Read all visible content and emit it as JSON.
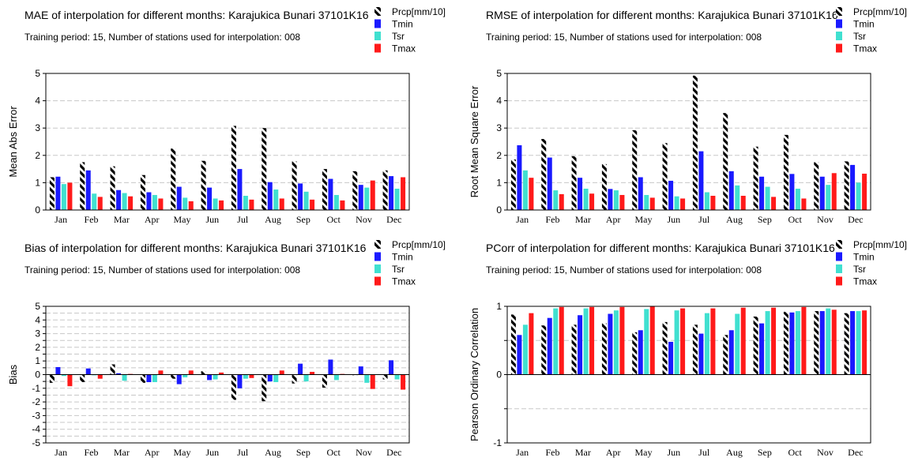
{
  "colors": {
    "Prcp[mm/10]": "hatch-black-white",
    "Tmin": "#1a1aff",
    "Tsr": "#40e0d0",
    "Tmax": "#ff1a1a",
    "gridline": "#c8c8c8"
  },
  "chart_data": [
    {
      "type": "bar",
      "title": "MAE of interpolation for different months: Karajukica Bunari  37101K16",
      "subtitle": "Training period: 15, Number of stations used for interpolation: 008",
      "ylabel": "Mean Abs Error",
      "xlabel": "",
      "ylim": [
        0,
        5
      ],
      "yticks": [
        0,
        1,
        2,
        3,
        4,
        5
      ],
      "ytick_labels": [
        "0",
        "1",
        "2",
        "3",
        "4",
        "5"
      ],
      "grid": true,
      "legend_position": "top-right",
      "categories": [
        "Jan",
        "Feb",
        "Mar",
        "Apr",
        "May",
        "Jun",
        "Jul",
        "Aug",
        "Sep",
        "Oct",
        "Nov",
        "Dec"
      ],
      "series": [
        {
          "name": "Prcp[mm/10]",
          "values": [
            1.2,
            1.75,
            1.6,
            1.28,
            2.25,
            1.8,
            3.08,
            3.0,
            1.78,
            1.5,
            1.42,
            1.45
          ]
        },
        {
          "name": "Tmin",
          "values": [
            1.22,
            1.45,
            0.73,
            0.65,
            0.85,
            0.82,
            1.5,
            1.02,
            0.97,
            1.14,
            0.92,
            1.24
          ]
        },
        {
          "name": "Tsr",
          "values": [
            0.95,
            0.6,
            0.62,
            0.55,
            0.45,
            0.42,
            0.52,
            0.75,
            0.67,
            0.55,
            0.82,
            0.78
          ]
        },
        {
          "name": "Tmax",
          "values": [
            1.0,
            0.48,
            0.5,
            0.42,
            0.32,
            0.35,
            0.38,
            0.42,
            0.38,
            0.35,
            1.08,
            1.2
          ]
        }
      ]
    },
    {
      "type": "bar",
      "title": "RMSE of interpolation for different months: Karajukica Bunari  37101K16",
      "subtitle": "Training period: 15, Number of stations used for interpolation: 008",
      "ylabel": "Root Mean Square Error",
      "xlabel": "",
      "ylim": [
        0,
        5
      ],
      "yticks": [
        0,
        1,
        2,
        3,
        4,
        5
      ],
      "ytick_labels": [
        "0",
        "1",
        "2",
        "3",
        "4",
        "5"
      ],
      "grid": true,
      "legend_position": "top-right",
      "categories": [
        "Jan",
        "Feb",
        "Mar",
        "Apr",
        "May",
        "Jun",
        "Jul",
        "Aug",
        "Sep",
        "Oct",
        "Nov",
        "Dec"
      ],
      "series": [
        {
          "name": "Prcp[mm/10]",
          "values": [
            1.85,
            2.6,
            1.97,
            1.68,
            2.92,
            2.45,
            4.92,
            3.55,
            2.32,
            2.75,
            1.75,
            1.78
          ]
        },
        {
          "name": "Tmin",
          "values": [
            2.37,
            1.92,
            1.18,
            0.77,
            1.2,
            1.07,
            2.15,
            1.42,
            1.22,
            1.32,
            1.22,
            1.65
          ]
        },
        {
          "name": "Tsr",
          "values": [
            1.45,
            0.72,
            0.78,
            0.72,
            0.55,
            0.5,
            0.65,
            0.9,
            0.85,
            0.78,
            0.92,
            1.0
          ]
        },
        {
          "name": "Tmax",
          "values": [
            1.18,
            0.58,
            0.6,
            0.55,
            0.45,
            0.42,
            0.52,
            0.52,
            0.48,
            0.42,
            1.35,
            1.33
          ]
        }
      ]
    },
    {
      "type": "bar",
      "title": "Bias of interpolation for different months: Karajukica Bunari  37101K16",
      "subtitle": "Training period: 15, Number of stations used for interpolation: 008",
      "ylabel": "Bias",
      "xlabel": "",
      "ylim": [
        -5,
        5
      ],
      "yticks": [
        -5,
        -4.5,
        -4,
        -3.5,
        -3,
        -2.5,
        -2,
        -1.5,
        -1,
        -0.5,
        0,
        0.5,
        1,
        1.5,
        2,
        2.5,
        3,
        3.5,
        4,
        4.5,
        5
      ],
      "ytick_labels": [
        "-5",
        "-4",
        "-3",
        "-2",
        "-1",
        "0",
        "1",
        "2",
        "3",
        "4",
        "5"
      ],
      "grid": true,
      "legend_position": "top-right",
      "categories": [
        "Jan",
        "Feb",
        "Mar",
        "Apr",
        "May",
        "Jun",
        "Jul",
        "Aug",
        "Sep",
        "Oct",
        "Nov",
        "Dec"
      ],
      "series": [
        {
          "name": "Prcp[mm/10]",
          "values": [
            -0.6,
            -0.55,
            0.75,
            -0.6,
            -0.3,
            0.25,
            -1.85,
            -1.95,
            -0.65,
            -0.95,
            -0.05,
            -0.35
          ]
        },
        {
          "name": "Tmin",
          "values": [
            0.55,
            0.45,
            0.1,
            -0.55,
            -0.7,
            -0.4,
            -1.0,
            -0.5,
            0.8,
            1.1,
            0.6,
            1.05
          ]
        },
        {
          "name": "Tsr",
          "values": [
            -0.1,
            -0.05,
            -0.45,
            -0.55,
            -0.2,
            -0.35,
            -0.3,
            -0.55,
            -0.5,
            -0.4,
            -0.6,
            -0.35
          ]
        },
        {
          "name": "Tmax",
          "values": [
            -0.85,
            -0.3,
            0.05,
            0.3,
            0.3,
            0.15,
            -0.25,
            0.3,
            0.2,
            0.05,
            -1.05,
            -1.1
          ]
        }
      ]
    },
    {
      "type": "bar",
      "title": "PCorr of interpolation for different months: Karajukica Bunari  37101K16",
      "subtitle": "Training period: 15, Number of stations used for interpolation: 008",
      "ylabel": "Pearson Ordinary Correlation",
      "xlabel": "",
      "ylim": [
        -1,
        1
      ],
      "yticks": [
        -1,
        -0.5,
        0,
        0.5,
        1
      ],
      "ytick_labels": [
        "-1",
        "0",
        "1"
      ],
      "grid": true,
      "legend_position": "top-right",
      "categories": [
        "Jan",
        "Feb",
        "Mar",
        "Apr",
        "May",
        "Jun",
        "Jul",
        "Aug",
        "Sep",
        "Oct",
        "Nov",
        "Dec"
      ],
      "series": [
        {
          "name": "Prcp[mm/10]",
          "values": [
            0.88,
            0.72,
            0.73,
            0.75,
            0.62,
            0.77,
            0.73,
            0.58,
            0.85,
            0.92,
            0.93,
            0.9
          ]
        },
        {
          "name": "Tmin",
          "values": [
            0.58,
            0.83,
            0.87,
            0.89,
            0.65,
            0.48,
            0.6,
            0.65,
            0.75,
            0.91,
            0.93,
            0.93
          ]
        },
        {
          "name": "Tsr",
          "values": [
            0.73,
            0.97,
            0.97,
            0.94,
            0.96,
            0.94,
            0.9,
            0.89,
            0.93,
            0.93,
            0.97,
            0.93
          ]
        },
        {
          "name": "Tmax",
          "values": [
            0.9,
            0.99,
            0.99,
            0.99,
            1.0,
            0.97,
            0.97,
            0.98,
            0.98,
            0.99,
            0.95,
            0.94
          ]
        }
      ]
    }
  ]
}
